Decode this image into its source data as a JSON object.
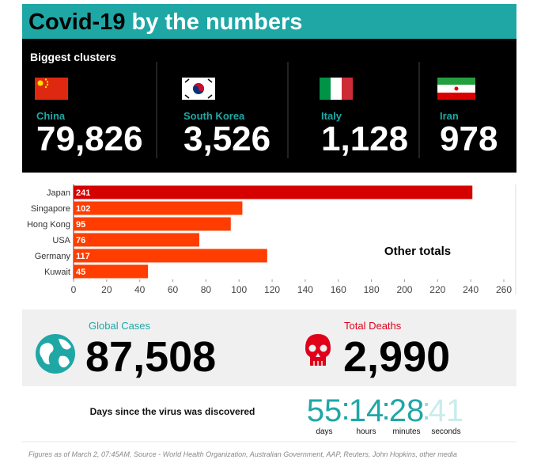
{
  "header": {
    "title_dark": "Covid-19",
    "title_light": "by the numbers"
  },
  "clusters": {
    "heading": "Biggest clusters",
    "items": [
      {
        "country": "China",
        "cases": "79,826"
      },
      {
        "country": "South Korea",
        "cases": "3,526"
      },
      {
        "country": "Italy",
        "cases": "1,128"
      },
      {
        "country": "Iran",
        "cases": "978"
      }
    ]
  },
  "chart_data": {
    "type": "bar",
    "orientation": "horizontal",
    "categories": [
      "Japan",
      "Singapore",
      "Hong Kong",
      "USA",
      "Germany",
      "Kuwait"
    ],
    "values": [
      241,
      102,
      95,
      76,
      117,
      45
    ],
    "colors": [
      "#d50000",
      "#ff3d00",
      "#ff3d00",
      "#ff3d00",
      "#ff3d00",
      "#ff3d00"
    ],
    "xlim": [
      0,
      260
    ],
    "xticks": [
      0,
      20,
      40,
      60,
      80,
      100,
      120,
      140,
      160,
      180,
      200,
      220,
      240,
      260
    ],
    "annotation": "Other totals"
  },
  "stats": {
    "global": {
      "label": "Global Cases",
      "value": "87,508"
    },
    "deaths": {
      "label": "Total Deaths",
      "value": "2,990"
    }
  },
  "countdown": {
    "caption": "Days since the virus was discovered",
    "separator": ":",
    "units": [
      {
        "value": "55",
        "label": "days"
      },
      {
        "value": "14",
        "label": "hours"
      },
      {
        "value": "28",
        "label": "minutes"
      },
      {
        "value": "41",
        "label": "seconds"
      }
    ]
  },
  "footer": "Figures as of March 2, 07:45AM. Source - World Health Organization, Australian Government, AAP, Reuters, John Hopkins, other media"
}
